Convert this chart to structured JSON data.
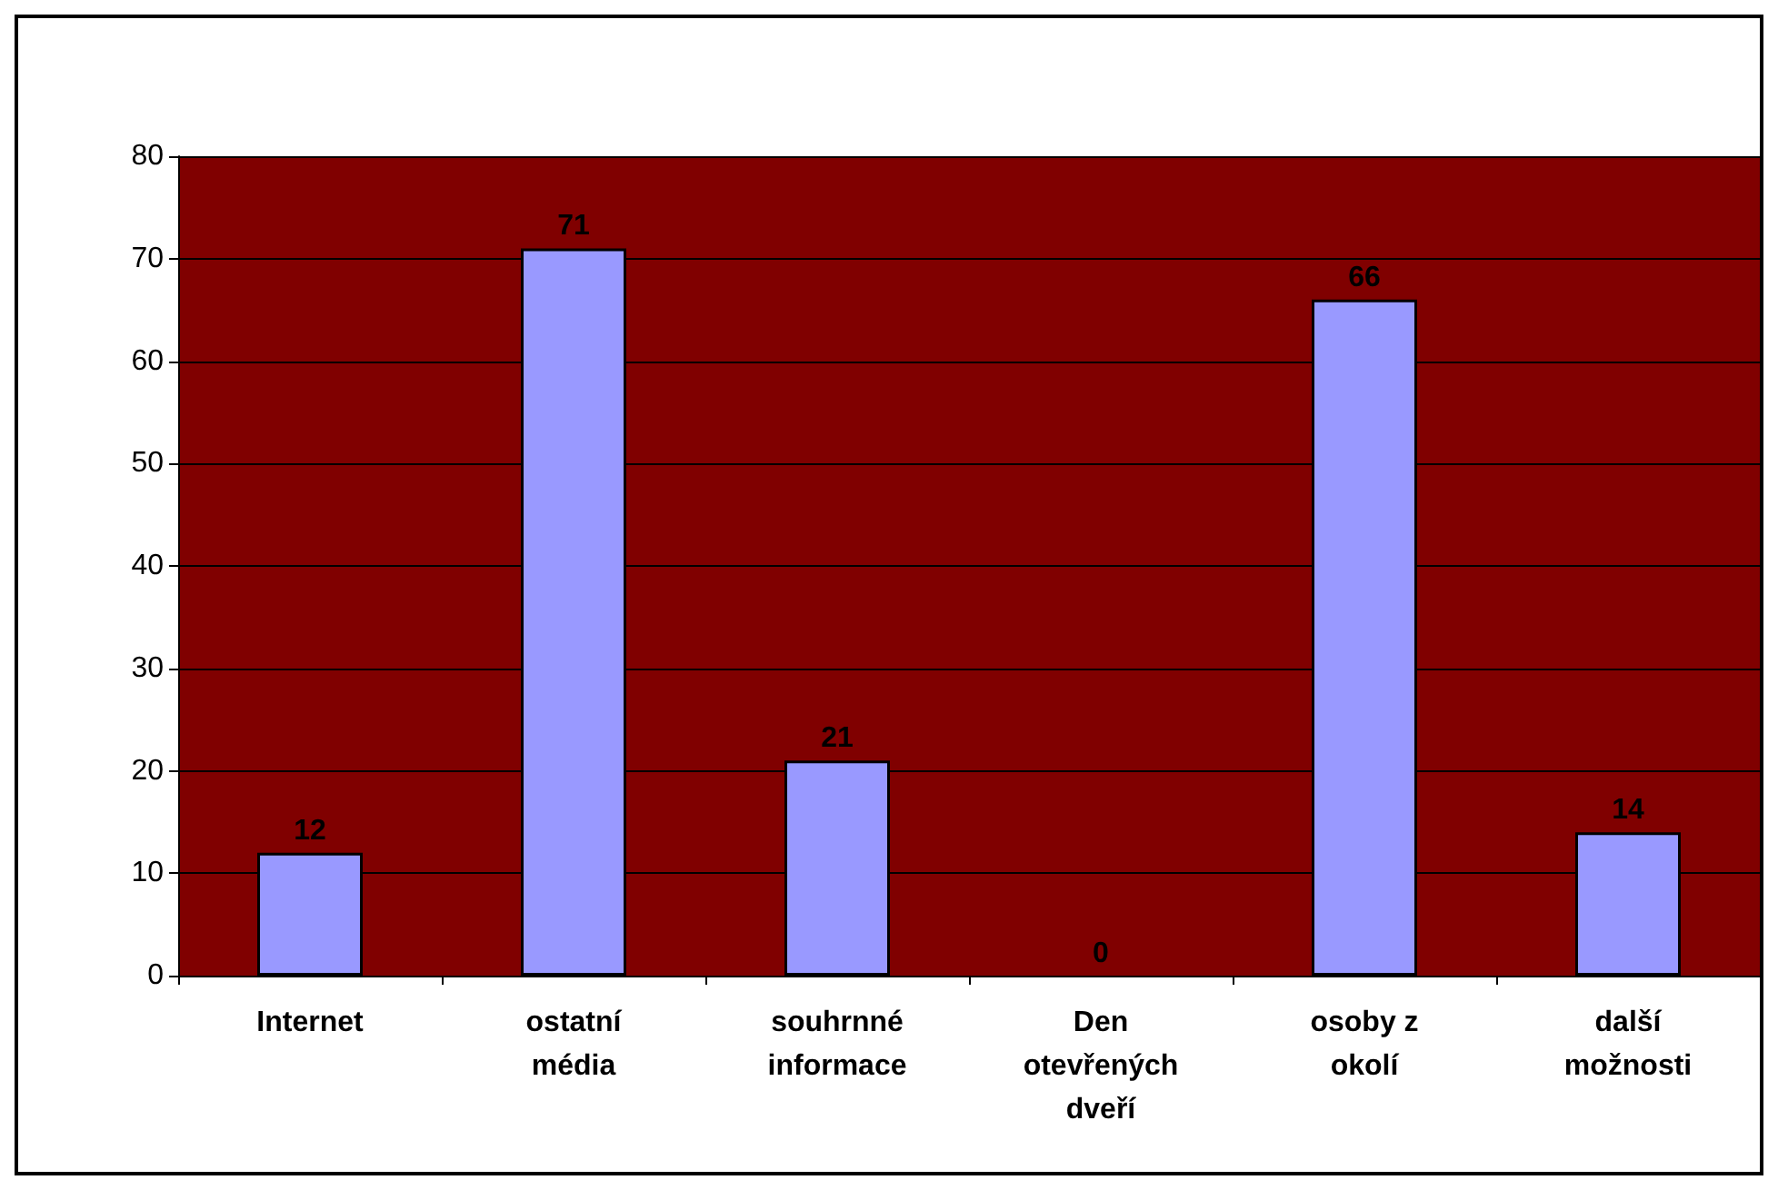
{
  "chart_data": {
    "type": "bar",
    "categories": [
      "Internet",
      "ostatní\nmédia",
      "souhrnné\ninformace",
      "Den\notevřených\ndveří",
      "osoby z\nokolí",
      "další\nmožnosti"
    ],
    "values": [
      12,
      71,
      21,
      0,
      66,
      14
    ],
    "color": "#9999ff",
    "ylim": [
      0,
      80
    ],
    "yticks": [
      0,
      10,
      20,
      30,
      40,
      50,
      60,
      70,
      80
    ],
    "grid": "y",
    "data_labels": true
  }
}
